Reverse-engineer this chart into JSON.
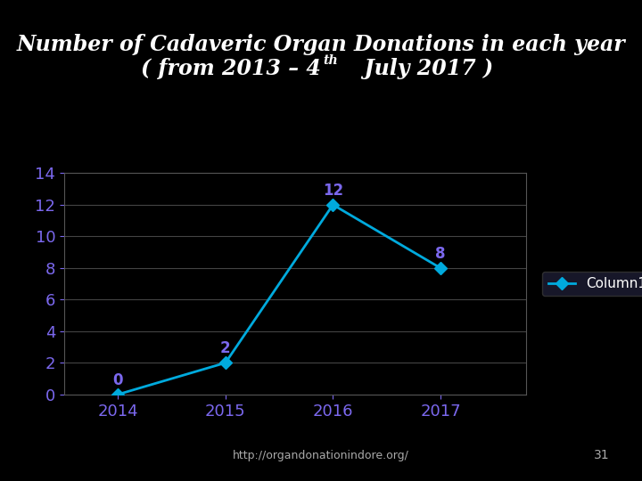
{
  "title_line1": "Number of Cadaveric Organ Donations in each year",
  "title_line2_part1": "( from 2013 – 4",
  "title_line2_super": "th",
  "title_line2_part2": "  July 2017 )",
  "x_values": [
    2014,
    2015,
    2016,
    2017
  ],
  "y_values": [
    0,
    2,
    12,
    8
  ],
  "data_labels": [
    "0",
    "2",
    "12",
    "8"
  ],
  "x_ticks": [
    2014,
    2015,
    2016,
    2017
  ],
  "y_ticks": [
    0,
    2,
    4,
    6,
    8,
    10,
    12,
    14
  ],
  "ylim": [
    0,
    14
  ],
  "xlim": [
    2013.5,
    2017.8
  ],
  "line_color": "#00AADD",
  "marker_color": "#00AADD",
  "label_color": "#7B68EE",
  "tick_color": "#7B68EE",
  "background_color": "#000000",
  "plot_bg_color": "#000000",
  "grid_color": "#444444",
  "title_color": "#FFFFFF",
  "legend_label": "Column1",
  "legend_marker_color": "#00AADD",
  "footer_text": "http://organdonationindore.org/",
  "footer_color": "#AAAAAA",
  "page_number": "31",
  "title_fontsize": 17,
  "tick_fontsize": 13,
  "label_fontsize": 12,
  "legend_fontsize": 11
}
